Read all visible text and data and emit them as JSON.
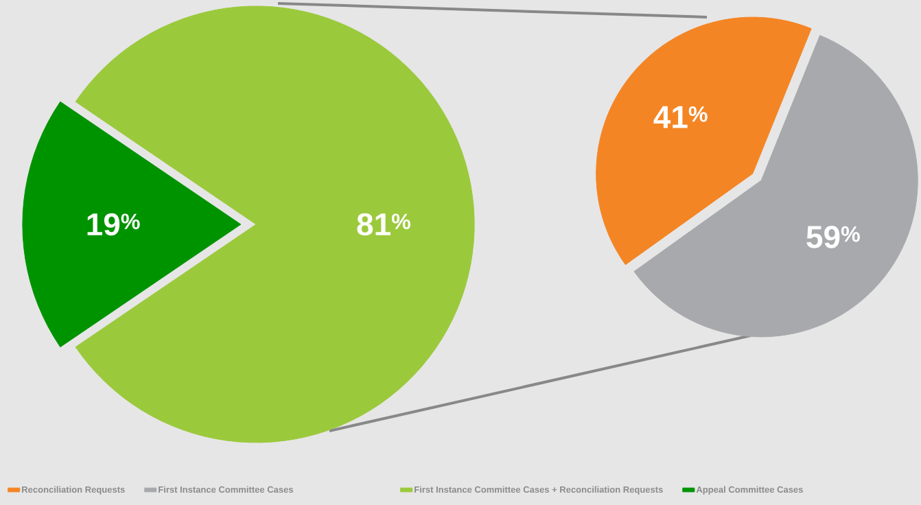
{
  "chart_data": [
    {
      "type": "pie",
      "categories": [
        "First Instance Committee Cases + Reconciliation Requests",
        "Appeal Committee Cases"
      ],
      "values": [
        81,
        19
      ],
      "colors": [
        "#9bc93c",
        "#009300"
      ],
      "value_labels": [
        "81$^{%}$",
        "19$^{%}$"
      ],
      "legend": "bottom"
    },
    {
      "type": "pie",
      "categories": [
        "Reconciliation Requests",
        "First Instance Committee Cases"
      ],
      "values": [
        41,
        59
      ],
      "colors": [
        "#f48524",
        "#a8a9ac"
      ],
      "value_labels": [
        "41$^{%}$",
        "59$^{%}$"
      ],
      "legend": "bottom"
    }
  ]
}
